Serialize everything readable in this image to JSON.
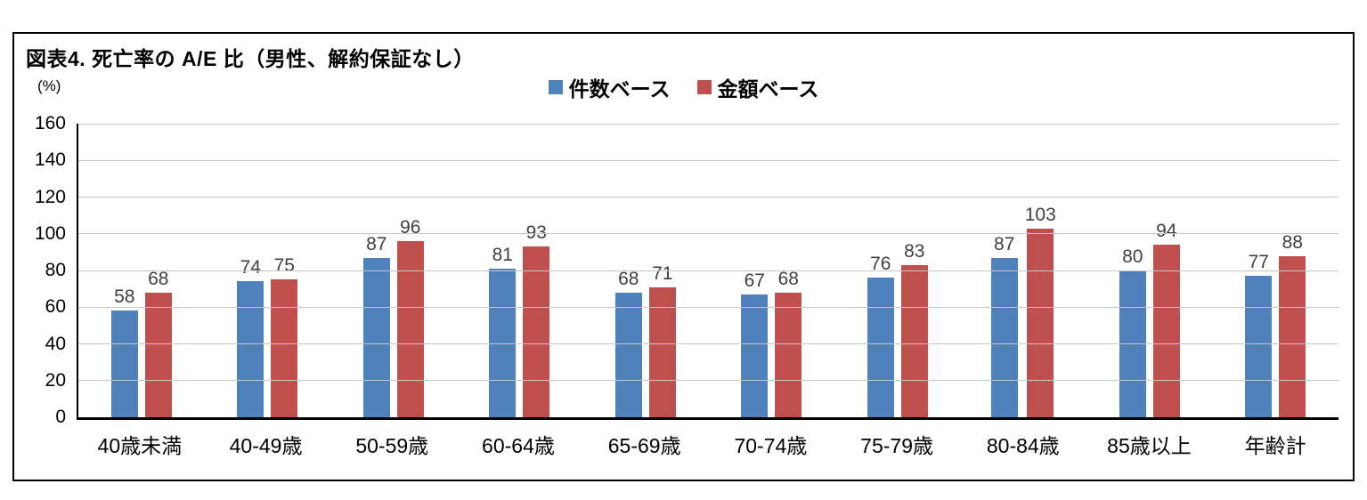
{
  "chart_data": {
    "type": "bar",
    "title": "図表4. 死亡率の A/E 比（男性、解約保証なし）",
    "unit_label": "(%)",
    "categories": [
      "40歳未満",
      "40-49歳",
      "50-59歳",
      "60-64歳",
      "65-69歳",
      "70-74歳",
      "75-79歳",
      "80-84歳",
      "85歳以上",
      "年齢計"
    ],
    "series": [
      {
        "name": "件数ベース",
        "color": "#4f81bd",
        "values": [
          58,
          74,
          87,
          81,
          68,
          67,
          76,
          87,
          80,
          77
        ]
      },
      {
        "name": "金額ベース",
        "color": "#c0504d",
        "values": [
          68,
          75,
          96,
          93,
          71,
          68,
          83,
          103,
          94,
          88
        ]
      }
    ],
    "ylim": [
      0,
      160
    ],
    "ytick_step": 20,
    "grid": true,
    "legend_position": "top-center",
    "xlabel": "",
    "ylabel": "(%)"
  }
}
